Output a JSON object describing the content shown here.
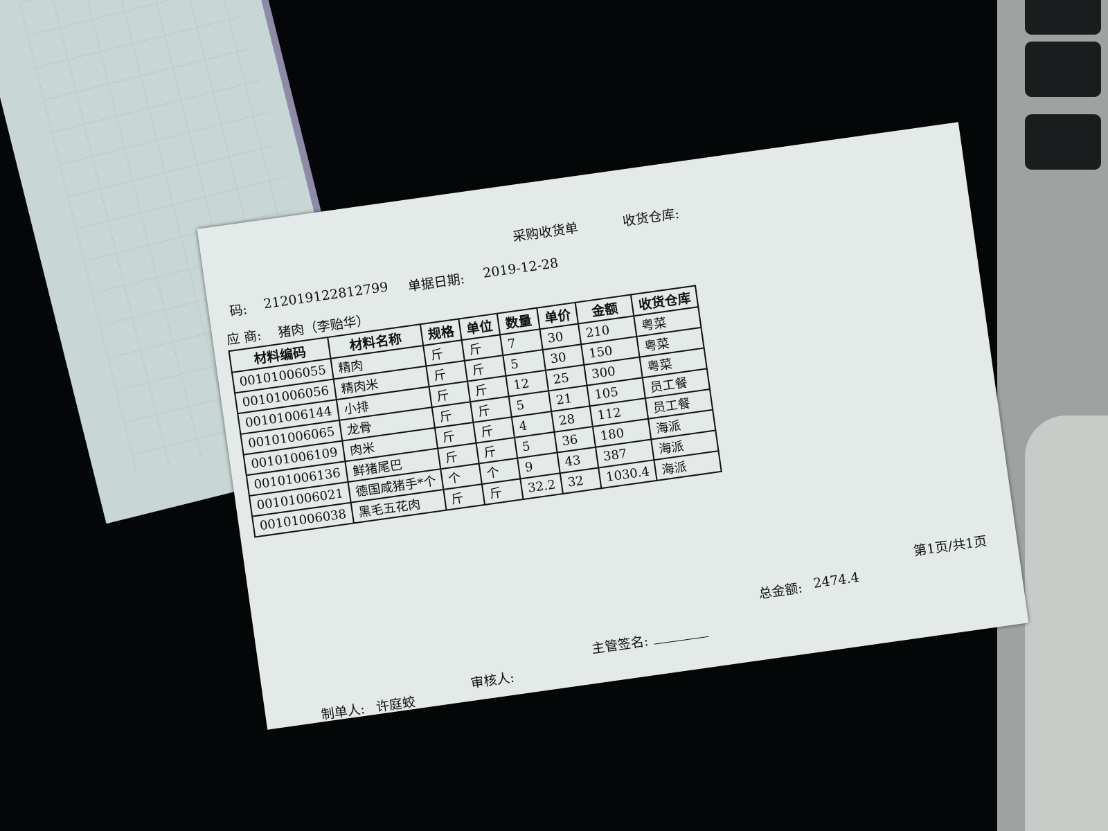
{
  "header": {
    "title": "采购收货单",
    "warehouse_label": "收货仓库:",
    "number_label": "码:",
    "number": "212019122812799",
    "date_label": "单据日期:",
    "date": "2019-12-28",
    "supplier_label": "应 商:",
    "supplier": "猪肉（李贻华）"
  },
  "table": {
    "columns": [
      "材料编码",
      "材料名称",
      "规格",
      "单位",
      "数量",
      "单价",
      "金额",
      "收货仓库"
    ],
    "rows": [
      [
        "00101006055",
        "精肉",
        "斤",
        "斤",
        7,
        30,
        210,
        "粤菜"
      ],
      [
        "00101006056",
        "精肉米",
        "斤",
        "斤",
        5,
        30,
        150,
        "粤菜"
      ],
      [
        "00101006144",
        "小排",
        "斤",
        "斤",
        12,
        25,
        300,
        "粤菜"
      ],
      [
        "00101006065",
        "龙骨",
        "斤",
        "斤",
        5,
        21,
        105,
        "员工餐"
      ],
      [
        "00101006109",
        "肉米",
        "斤",
        "斤",
        4,
        28,
        112,
        "员工餐"
      ],
      [
        "00101006136",
        "鲜猪尾巴",
        "斤",
        "斤",
        5,
        36,
        180,
        "海派"
      ],
      [
        "00101006021",
        "德国咸猪手*个",
        "个",
        "个",
        9,
        43,
        387,
        "海派"
      ],
      [
        "00101006038",
        "黑毛五花肉",
        "斤",
        "斤",
        32.2,
        32,
        1030.4,
        "海派"
      ]
    ]
  },
  "footer": {
    "total_label": "总金额:",
    "total": 2474.4,
    "page": "第1页/共1页",
    "manager_label": "主管签名:",
    "reviewer_label": "审核人:",
    "maker_label": "制单人:",
    "maker": "许庭蛟"
  }
}
